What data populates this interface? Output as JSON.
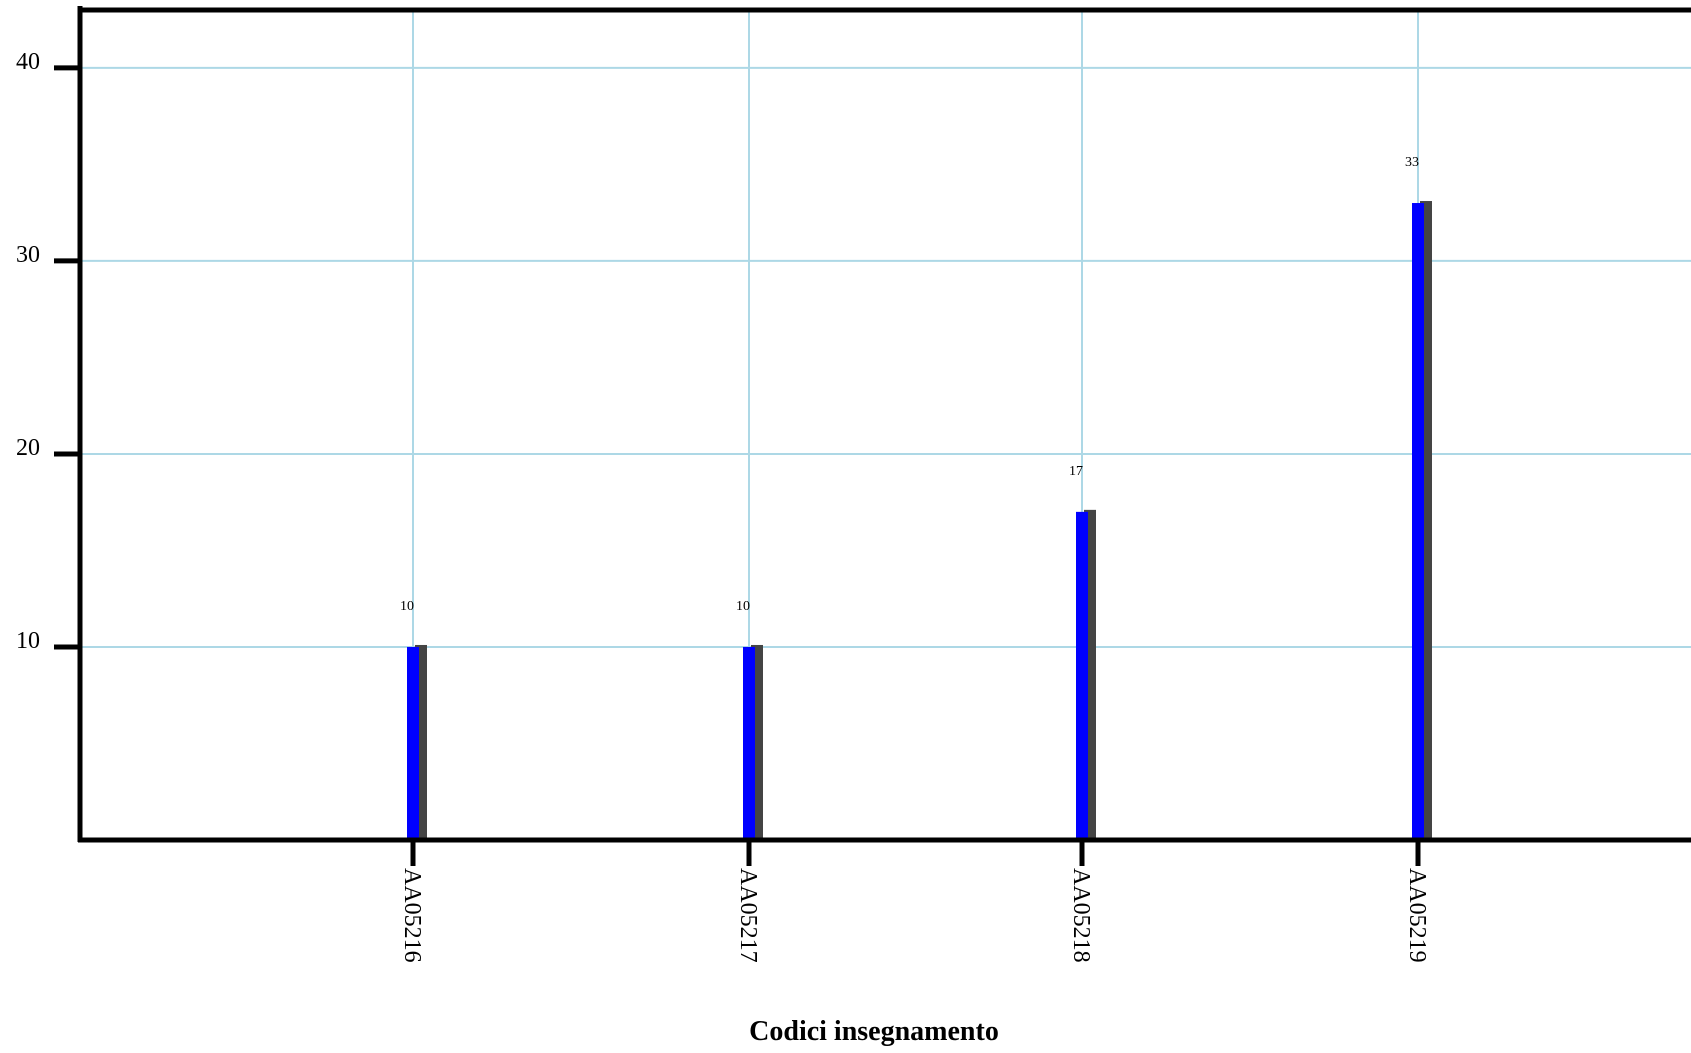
{
  "chart_data": {
    "type": "bar",
    "title": "",
    "xlabel": "Codici insegnamento",
    "ylabel": "",
    "categories": [
      "AA05216",
      "AA05217",
      "AA05218",
      "AA05219"
    ],
    "values": [
      10,
      10,
      17,
      33
    ],
    "value_labels": [
      "10",
      "10",
      "17",
      "33"
    ],
    "ylim": [
      0,
      43
    ],
    "yticks": [
      10,
      20,
      30,
      40
    ],
    "ytick_labels": [
      "10",
      "20",
      "30",
      "40"
    ],
    "grid": true,
    "colors": {
      "bar": "#0000ff",
      "grid": "#add8e6",
      "axis": "#000000"
    }
  }
}
